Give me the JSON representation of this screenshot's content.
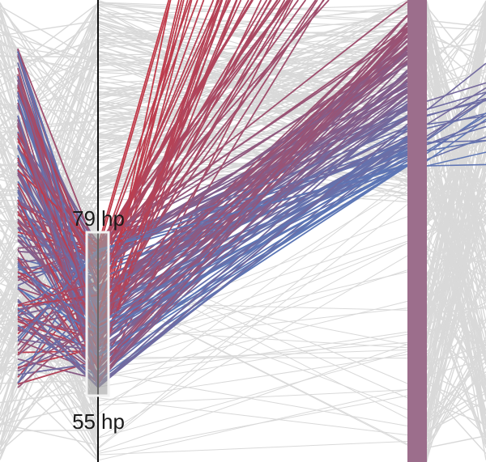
{
  "chart_data": {
    "type": "parallel-coordinates",
    "axes": [
      {
        "name": "",
        "unit": "hp"
      },
      {
        "name": "",
        "unit": ""
      }
    ],
    "brush": {
      "axis": 0,
      "max_label": "79",
      "min_label": "55",
      "unit_label": "hp",
      "range": [
        55,
        79
      ]
    },
    "colors": {
      "background_lines": "#d9d9d9",
      "selected_high": "#c23a48",
      "selected_low": "#5b78b8",
      "axis_bar": "#9c6e8c",
      "axis_line": "#111111",
      "brush_fill": "#a0a0a0",
      "brush_stroke": "#f2f2f2"
    },
    "grid": false,
    "legend": "none"
  }
}
